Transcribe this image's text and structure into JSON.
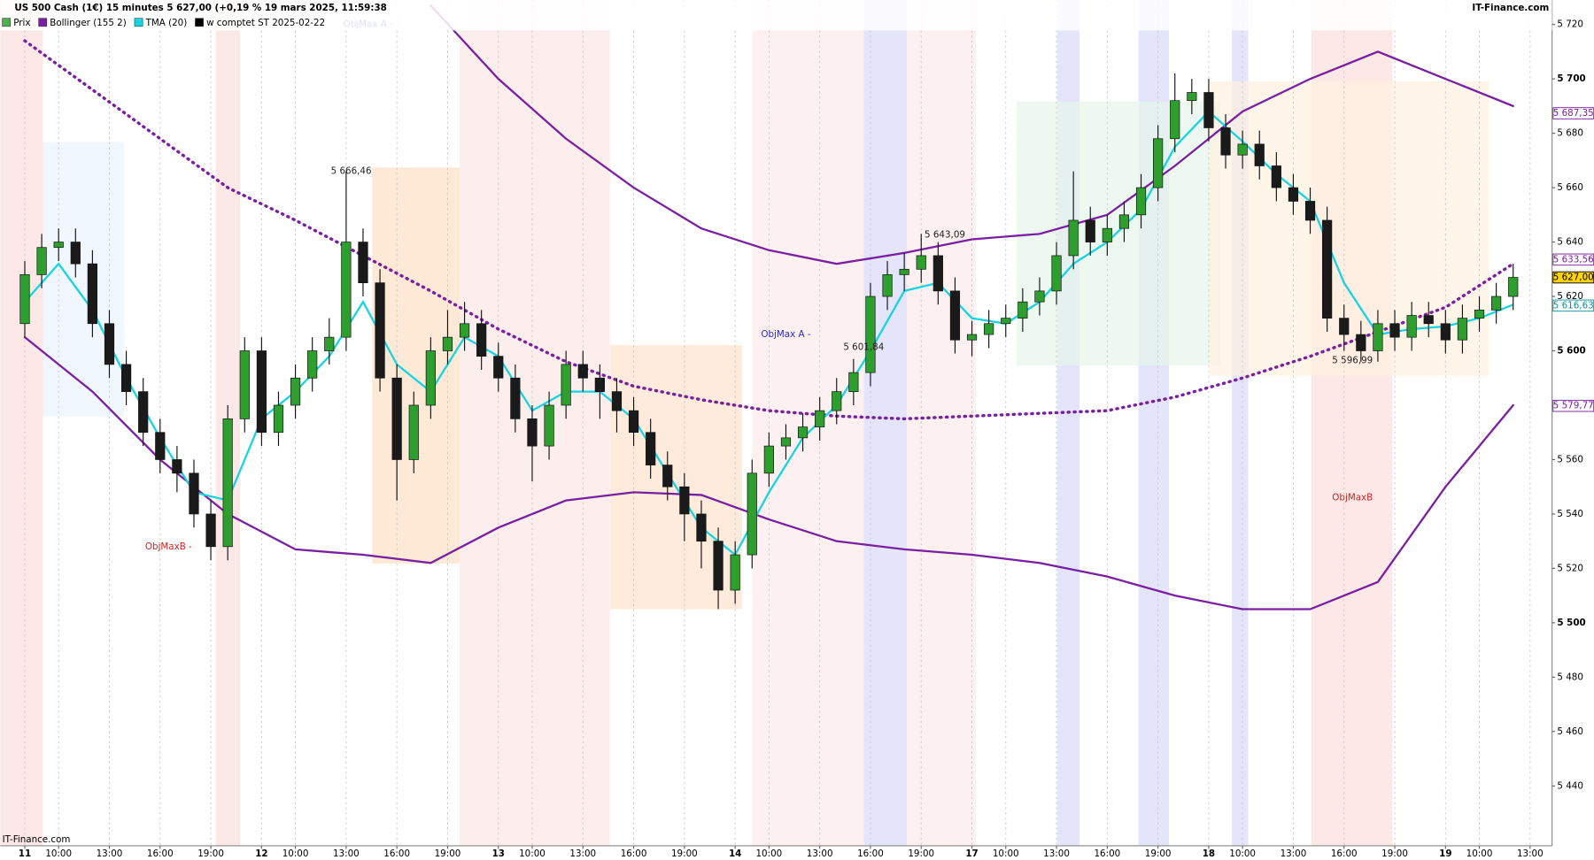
{
  "chart_data": {
    "type": "candlestick",
    "title": "US 500 Cash (1€) 15 minutes 5 627,00 (+0,19 % 19 mars 2025, 11:59:38",
    "source": "IT-Finance.com",
    "xlim": [
      -1.45,
      90.3
    ],
    "ylim": [
      5418,
      5729
    ],
    "grid": true,
    "xticks": [
      {
        "value": 0,
        "label": "11"
      },
      {
        "value": 2,
        "label": "10:00"
      },
      {
        "value": 5,
        "label": "13:00"
      },
      {
        "value": 8,
        "label": "16:00"
      },
      {
        "value": 11,
        "label": "19:00"
      },
      {
        "value": 14,
        "label": "12"
      },
      {
        "value": 16,
        "label": "10:00"
      },
      {
        "value": 19,
        "label": "13:00"
      },
      {
        "value": 22,
        "label": "16:00"
      },
      {
        "value": 25,
        "label": "19:00"
      },
      {
        "value": 28,
        "label": "13"
      },
      {
        "value": 30,
        "label": "10:00"
      },
      {
        "value": 33,
        "label": "13:00"
      },
      {
        "value": 36,
        "label": "16:00"
      },
      {
        "value": 39,
        "label": "19:00"
      },
      {
        "value": 42,
        "label": "14"
      },
      {
        "value": 44,
        "label": "10:00"
      },
      {
        "value": 47,
        "label": "13:00"
      },
      {
        "value": 50,
        "label": "16:00"
      },
      {
        "value": 53,
        "label": "19:00"
      },
      {
        "value": 56,
        "label": "17"
      },
      {
        "value": 58,
        "label": "10:00"
      },
      {
        "value": 61,
        "label": "13:00"
      },
      {
        "value": 64,
        "label": "16:00"
      },
      {
        "value": 67,
        "label": "19:00"
      },
      {
        "value": 70,
        "label": "18"
      },
      {
        "value": 72,
        "label": "10:00"
      },
      {
        "value": 75,
        "label": "13:00"
      },
      {
        "value": 78,
        "label": "16:00"
      },
      {
        "value": 81,
        "label": "19:00"
      },
      {
        "value": 84,
        "label": "19"
      },
      {
        "value": 86,
        "label": "10:00"
      },
      {
        "value": 89,
        "label": "13:00"
      }
    ],
    "yticks": [
      {
        "value": 5440,
        "label": "5 440"
      },
      {
        "value": 5460,
        "label": "5 460"
      },
      {
        "value": 5480,
        "label": "5 480"
      },
      {
        "value": 5500,
        "label": "5 500"
      },
      {
        "value": 5520,
        "label": "5 520"
      },
      {
        "value": 5540,
        "label": "5 540"
      },
      {
        "value": 5560,
        "label": "5 560"
      },
      {
        "value": 5580,
        "label": "5 580"
      },
      {
        "value": 5600,
        "label": "5 600"
      },
      {
        "value": 5620,
        "label": "5 620"
      },
      {
        "value": 5640,
        "label": "5 640"
      },
      {
        "value": 5660,
        "label": "5 660"
      },
      {
        "value": 5680,
        "label": "5 680"
      },
      {
        "value": 5700,
        "label": "5 700"
      },
      {
        "value": 5720,
        "label": "5 720"
      }
    ],
    "series": [
      {
        "name": "Prix",
        "color": "#4caf50",
        "up_color": "#2e9e2e",
        "down_color": "#1a1a1a",
        "x": [
          0,
          1,
          2,
          3,
          4,
          5,
          6,
          7,
          8,
          9,
          10,
          11,
          12,
          13,
          14,
          15,
          16,
          17,
          18,
          19,
          20,
          21,
          22,
          23,
          24,
          25,
          26,
          27,
          28,
          29,
          30,
          31,
          32,
          33,
          34,
          35,
          36,
          37,
          38,
          39,
          40,
          41,
          42,
          43,
          44,
          45,
          46,
          47,
          48,
          49,
          50,
          51,
          52,
          53,
          54,
          55,
          56,
          57,
          58,
          59,
          60,
          61,
          62,
          63,
          64,
          65,
          66,
          67,
          68,
          69,
          70,
          71,
          72,
          73,
          74,
          75,
          76,
          77,
          78,
          79,
          80,
          81,
          82,
          83,
          84,
          85,
          86,
          87,
          88
        ],
        "open": [
          5610,
          5628,
          5638,
          5640,
          5632,
          5610,
          5595,
          5585,
          5570,
          5560,
          5555,
          5540,
          5528,
          5575,
          5600,
          5570,
          5580,
          5590,
          5600,
          5605,
          5640,
          5625,
          5590,
          5560,
          5580,
          5600,
          5605,
          5610,
          5598,
          5590,
          5575,
          5565,
          5580,
          5595,
          5590,
          5585,
          5578,
          5570,
          5558,
          5550,
          5540,
          5530,
          5512,
          5525,
          5555,
          5565,
          5568,
          5572,
          5578,
          5585,
          5592,
          5620,
          5628,
          5630,
          5635,
          5622,
          5604,
          5606,
          5610,
          5612,
          5618,
          5622,
          5635,
          5648,
          5640,
          5645,
          5650,
          5660,
          5678,
          5692,
          5695,
          5682,
          5672,
          5676,
          5668,
          5660,
          5655,
          5648,
          5612,
          5606,
          5600,
          5610,
          5605,
          5613,
          5610,
          5604,
          5612,
          5615,
          5620
        ],
        "high": [
          5633,
          5643,
          5645,
          5645,
          5637,
          5615,
          5600,
          5590,
          5575,
          5565,
          5560,
          5545,
          5580,
          5605,
          5605,
          5585,
          5595,
          5605,
          5612,
          5666,
          5645,
          5630,
          5595,
          5585,
          5605,
          5615,
          5618,
          5615,
          5603,
          5595,
          5580,
          5585,
          5600,
          5600,
          5595,
          5590,
          5583,
          5575,
          5563,
          5555,
          5545,
          5535,
          5530,
          5560,
          5570,
          5573,
          5577,
          5583,
          5590,
          5597,
          5625,
          5633,
          5636,
          5643,
          5640,
          5627,
          5611,
          5615,
          5617,
          5623,
          5627,
          5640,
          5666,
          5653,
          5650,
          5655,
          5665,
          5683,
          5702,
          5700,
          5700,
          5687,
          5681,
          5681,
          5673,
          5665,
          5660,
          5653,
          5617,
          5611,
          5615,
          5615,
          5618,
          5618,
          5615,
          5617,
          5620,
          5625,
          5632
        ],
        "low": [
          5605,
          5623,
          5633,
          5627,
          5605,
          5590,
          5580,
          5565,
          5555,
          5548,
          5535,
          5523,
          5523,
          5570,
          5565,
          5565,
          5575,
          5585,
          5595,
          5600,
          5620,
          5585,
          5545,
          5555,
          5575,
          5595,
          5600,
          5593,
          5585,
          5570,
          5552,
          5560,
          5575,
          5585,
          5575,
          5570,
          5565,
          5553,
          5545,
          5530,
          5520,
          5505,
          5507,
          5520,
          5550,
          5560,
          5563,
          5567,
          5573,
          5580,
          5587,
          5615,
          5622,
          5625,
          5617,
          5599,
          5598,
          5601,
          5605,
          5607,
          5613,
          5617,
          5630,
          5635,
          5635,
          5640,
          5645,
          5655,
          5673,
          5687,
          5677,
          5667,
          5667,
          5663,
          5655,
          5650,
          5643,
          5607,
          5600,
          5596,
          5596,
          5600,
          5600,
          5605,
          5599,
          5599,
          5607,
          5610,
          5615
        ],
        "close": [
          5628,
          5638,
          5640,
          5632,
          5610,
          5595,
          5585,
          5570,
          5560,
          5555,
          5540,
          5528,
          5575,
          5600,
          5570,
          5580,
          5590,
          5600,
          5605,
          5640,
          5625,
          5590,
          5560,
          5580,
          5600,
          5605,
          5610,
          5598,
          5590,
          5575,
          5565,
          5580,
          5595,
          5590,
          5585,
          5578,
          5570,
          5558,
          5550,
          5540,
          5530,
          5512,
          5525,
          5555,
          5565,
          5568,
          5572,
          5578,
          5585,
          5592,
          5620,
          5628,
          5630,
          5635,
          5622,
          5604,
          5606,
          5610,
          5612,
          5618,
          5622,
          5635,
          5648,
          5640,
          5645,
          5650,
          5660,
          5678,
          5692,
          5695,
          5682,
          5672,
          5676,
          5668,
          5660,
          5655,
          5648,
          5612,
          5606,
          5600,
          5610,
          5605,
          5613,
          5610,
          5604,
          5612,
          5615,
          5620,
          5627
        ]
      },
      {
        "name": "Bollinger (155 2)",
        "color": "#7b1fa2",
        "x": [
          0,
          4,
          8,
          12,
          16,
          20,
          24,
          28,
          32,
          36,
          40,
          44,
          48,
          52,
          56,
          60,
          64,
          68,
          72,
          76,
          80,
          84,
          88
        ],
        "upper": [
          null,
          null,
          null,
          null,
          null,
          null,
          5727,
          5700,
          5678,
          5660,
          5645,
          5637,
          5632,
          5636,
          5641,
          5643,
          5650,
          5668,
          5688,
          5700,
          5710,
          5700,
          5690
        ],
        "middle": [
          5714,
          5696,
          5678,
          5660,
          5648,
          5635,
          5622,
          5608,
          5596,
          5587,
          5582,
          5578,
          5576,
          5575,
          5576,
          5577,
          5578,
          5583,
          5590,
          5598,
          5607,
          5616,
          5632
        ],
        "lower": [
          5605,
          5585,
          5560,
          5540,
          5527,
          5525,
          5522,
          5535,
          5545,
          5548,
          5547,
          5538,
          5530,
          5527,
          5525,
          5522,
          5517,
          5510,
          5505,
          5505,
          5515,
          5550,
          5580
        ]
      },
      {
        "name": "TMA (20)",
        "color": "#17d4e0",
        "x": [
          0,
          2,
          4,
          6,
          8,
          10,
          12,
          14,
          16,
          18,
          20,
          22,
          24,
          26,
          28,
          30,
          32,
          34,
          36,
          38,
          40,
          42,
          44,
          46,
          48,
          50,
          52,
          54,
          56,
          58,
          60,
          62,
          64,
          66,
          68,
          70,
          72,
          74,
          76,
          78,
          80,
          82,
          84,
          86,
          88
        ],
        "values": [
          5618,
          5632,
          5615,
          5590,
          5568,
          5548,
          5545,
          5575,
          5585,
          5598,
          5618,
          5595,
          5585,
          5605,
          5598,
          5578,
          5585,
          5585,
          5575,
          5555,
          5535,
          5525,
          5548,
          5568,
          5580,
          5600,
          5622,
          5625,
          5612,
          5610,
          5618,
          5632,
          5640,
          5652,
          5675,
          5688,
          5677,
          5665,
          5655,
          5625,
          5606,
          5608,
          5609,
          5612,
          5617
        ]
      },
      {
        "name": "w comptet ST 2025-02-22",
        "color": "#000000"
      }
    ],
    "price_labels": [
      {
        "label": "5 687,35",
        "value": 5687.35,
        "color": "#7b1fa2",
        "bg": "#ffffff"
      },
      {
        "label": "5 633,56",
        "value": 5633.56,
        "color": "#7b1fa2",
        "bg": "#ffffff"
      },
      {
        "label": "5 627,00",
        "value": 5627,
        "color": "#000000",
        "bg": "#ffd400"
      },
      {
        "label": "5 616,63",
        "value": 5616.63,
        "color": "#0a8fa0",
        "bg": "#ffffff"
      },
      {
        "label": "5 579,77",
        "value": 5579.77,
        "color": "#7b1fa2",
        "bg": "#ffffff"
      }
    ],
    "annotations": [
      {
        "text": "5 666,46",
        "x": 19.3,
        "y": 5666,
        "color": "#222222"
      },
      {
        "text": "5 643,09",
        "x": 54.4,
        "y": 5642.6,
        "color": "#222222"
      },
      {
        "text": "5 601,84",
        "x": 49.6,
        "y": 5601.3,
        "color": "#222222"
      },
      {
        "text": "5 596,99",
        "x": 78.5,
        "y": 5596.5,
        "color": "#222222"
      },
      {
        "text": "ObjMax A -",
        "x": 20.3,
        "y": 5720,
        "color": "#2a2acf"
      },
      {
        "text": "ObjMax A -",
        "x": 45,
        "y": 5606,
        "color": "#2a2acf"
      },
      {
        "text": "ObjMaxB -",
        "x": 8.5,
        "y": 5528,
        "color": "#d22222"
      },
      {
        "text": "ObjMaxB",
        "x": 78.5,
        "y": 5546,
        "color": "#d22222"
      }
    ]
  }
}
